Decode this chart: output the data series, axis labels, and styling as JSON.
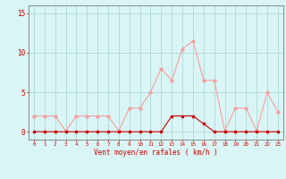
{
  "x": [
    0,
    1,
    2,
    3,
    4,
    5,
    6,
    7,
    8,
    9,
    10,
    11,
    12,
    13,
    14,
    15,
    16,
    17,
    18,
    19,
    20,
    21,
    22,
    23
  ],
  "y_rafales": [
    2,
    2,
    2,
    0.1,
    2,
    2,
    2,
    2,
    0.1,
    3,
    3,
    5,
    8,
    6.5,
    10.5,
    11.5,
    6.5,
    6.5,
    0.1,
    3,
    3,
    0.1,
    5,
    2.5
  ],
  "y_moyen": [
    0,
    0,
    0,
    0,
    0,
    0,
    0,
    0,
    0,
    0,
    0,
    0,
    0,
    2,
    2,
    2,
    1,
    0,
    0,
    0,
    0,
    0,
    0,
    0
  ],
  "color_rafales": "#f4a0a0",
  "color_moyen": "#cc0000",
  "bg_color": "#d9f5f5",
  "grid_color": "#b0d8d8",
  "axis_color": "#888888",
  "text_color": "#cc0000",
  "xlabel": "Vent moyen/en rafales ( km/h )",
  "yticks": [
    0,
    5,
    10,
    15
  ],
  "ylim": [
    -1,
    16
  ],
  "xlim": [
    -0.5,
    23.5
  ]
}
